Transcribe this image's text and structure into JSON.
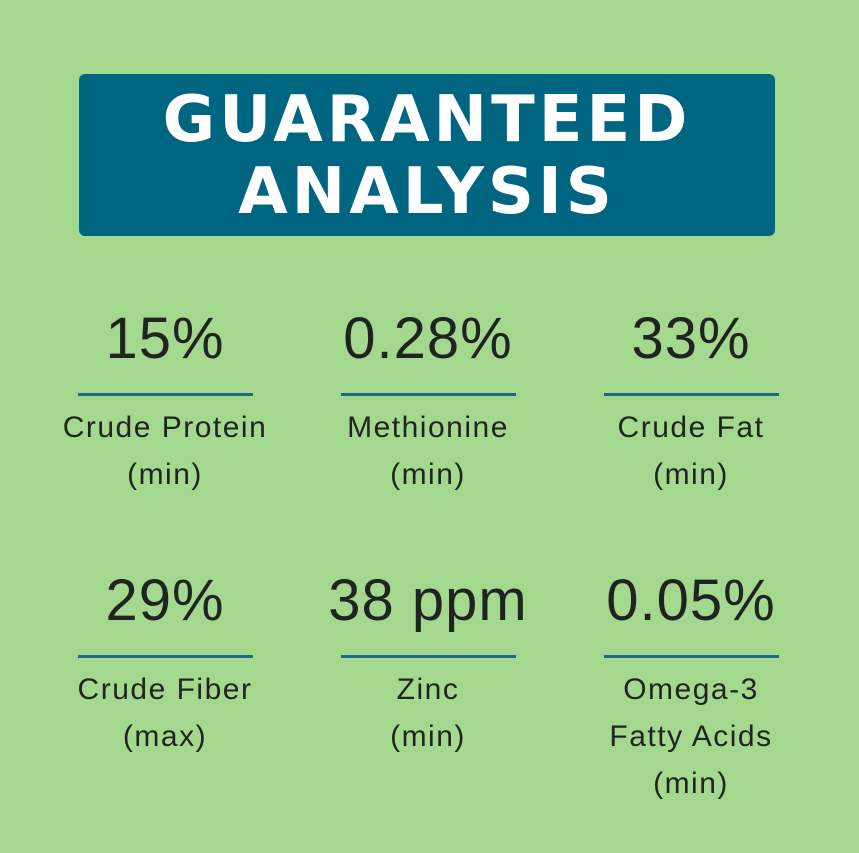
{
  "header": {
    "title_lines": [
      "GUARANTEED",
      "ANALYSIS"
    ]
  },
  "items": [
    {
      "value": "15%",
      "label_lines": [
        "Crude Protein",
        "(min)"
      ]
    },
    {
      "value": "0.28%",
      "label_lines": [
        "Methionine",
        "(min)"
      ]
    },
    {
      "value": "33%",
      "label_lines": [
        "Crude Fat",
        "(min)"
      ]
    },
    {
      "value": "29%",
      "label_lines": [
        "Crude Fiber",
        "(max)"
      ]
    },
    {
      "value": "38 ppm",
      "label_lines": [
        "Zinc",
        "(min)"
      ]
    },
    {
      "value": "0.05%",
      "label_lines": [
        "Omega-3",
        "Fatty Acids",
        "(min)"
      ]
    }
  ]
}
